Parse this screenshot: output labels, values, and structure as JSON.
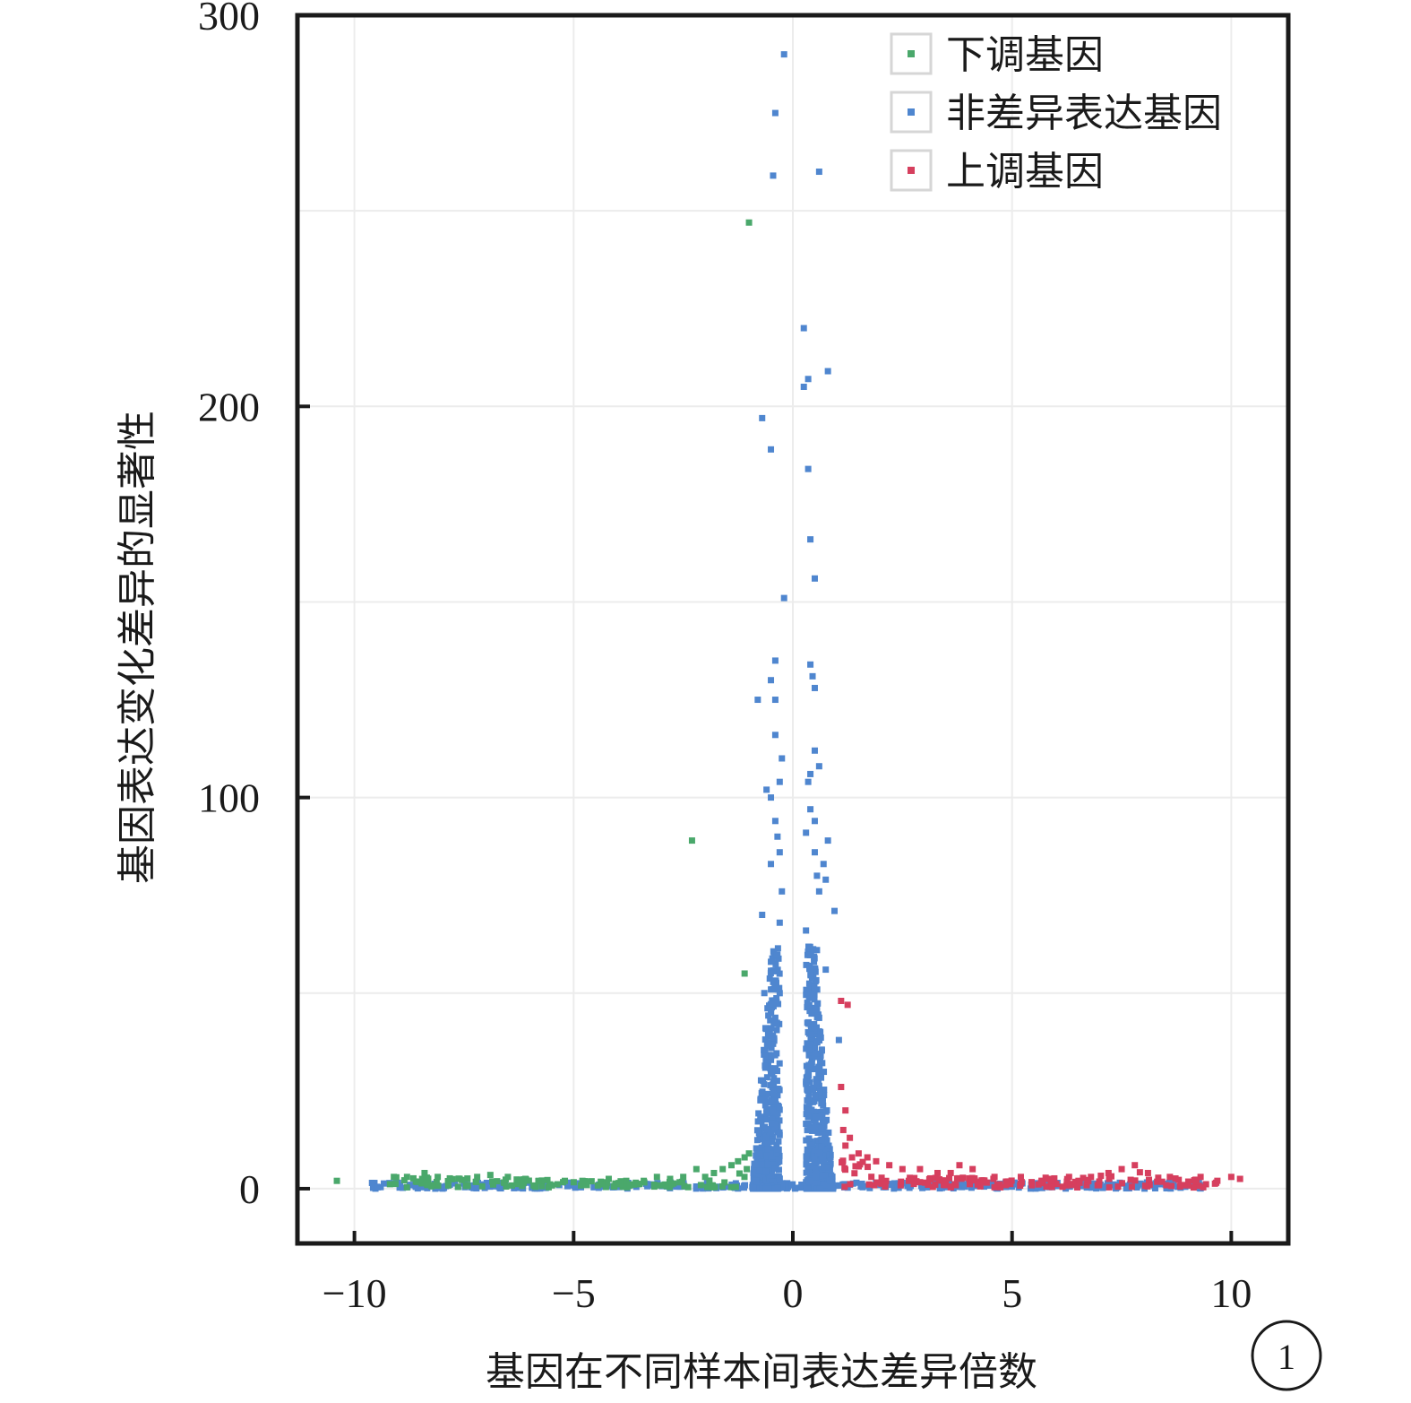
{
  "chart_data": {
    "type": "scatter",
    "title": "",
    "xlabel": "基因在不同样本间表达差异倍数",
    "ylabel": "基因表达变化差异的显著性",
    "xlim": [
      -11.3,
      11.3
    ],
    "ylim": [
      -14,
      300
    ],
    "xticks": [
      -10,
      -5,
      0,
      5,
      10
    ],
    "xtick_labels": [
      "−10",
      "−5",
      "0",
      "5",
      "10"
    ],
    "yticks": [
      0,
      100,
      200,
      300
    ],
    "ytick_labels": [
      "0",
      "100",
      "200",
      "300"
    ],
    "grid": true,
    "legend_position": "top-right",
    "panel_label": "1",
    "series": [
      {
        "name": "下调基因",
        "color": "#4aa86b",
        "points": [
          [
            -10.4,
            2
          ],
          [
            -9.1,
            3
          ],
          [
            -8.8,
            3
          ],
          [
            -8.4,
            4
          ],
          [
            -8.1,
            3
          ],
          [
            -7.6,
            2.5
          ],
          [
            -7.2,
            3
          ],
          [
            -6.9,
            3.5
          ],
          [
            -6.5,
            3
          ],
          [
            -6.1,
            2.5
          ],
          [
            -5.8,
            2
          ],
          [
            -5.2,
            2
          ],
          [
            -4.8,
            2
          ],
          [
            -4.2,
            2.5
          ],
          [
            -3.8,
            2
          ],
          [
            -3.4,
            2
          ],
          [
            -3.1,
            3
          ],
          [
            -2.8,
            2.5
          ],
          [
            -2.5,
            3
          ],
          [
            -2.2,
            5
          ],
          [
            -2.0,
            3
          ],
          [
            -1.8,
            4
          ],
          [
            -1.6,
            5
          ],
          [
            -1.4,
            6
          ],
          [
            -1.25,
            7
          ],
          [
            -1.1,
            8
          ],
          [
            -1.05,
            5
          ],
          [
            -1.0,
            9
          ],
          [
            -2.3,
            89
          ],
          [
            -1.1,
            55
          ],
          [
            -1.0,
            247
          ]
        ]
      },
      {
        "name": "非差异表达基因",
        "color": "#4f86cf",
        "points": [
          [
            -0.2,
            290
          ],
          [
            -0.4,
            275
          ],
          [
            0.6,
            260
          ],
          [
            -0.45,
            259
          ],
          [
            0.25,
            220
          ],
          [
            0.8,
            209
          ],
          [
            0.35,
            207
          ],
          [
            0.25,
            205
          ],
          [
            -0.7,
            197
          ],
          [
            -0.5,
            189
          ],
          [
            0.35,
            184
          ],
          [
            0.4,
            166
          ],
          [
            0.5,
            156
          ],
          [
            -0.2,
            151
          ],
          [
            -0.4,
            135
          ],
          [
            0.4,
            134
          ],
          [
            0.45,
            131
          ],
          [
            -0.5,
            130
          ],
          [
            0.5,
            128
          ],
          [
            -0.4,
            125
          ],
          [
            -0.8,
            125
          ],
          [
            -0.4,
            116
          ],
          [
            0.5,
            112
          ],
          [
            -0.25,
            110
          ],
          [
            0.6,
            108
          ],
          [
            0.4,
            106
          ],
          [
            0.35,
            104
          ],
          [
            -0.3,
            104
          ],
          [
            -0.6,
            102
          ],
          [
            -0.5,
            100
          ],
          [
            0.4,
            97
          ],
          [
            0.5,
            94
          ],
          [
            -0.4,
            94
          ],
          [
            0.3,
            91
          ],
          [
            -0.35,
            90
          ],
          [
            0.8,
            89
          ],
          [
            0.5,
            86
          ],
          [
            -0.3,
            86
          ],
          [
            0.7,
            83
          ],
          [
            -0.5,
            83
          ],
          [
            0.55,
            80
          ],
          [
            0.75,
            79
          ],
          [
            -0.25,
            76
          ],
          [
            0.6,
            76
          ],
          [
            0.95,
            71
          ],
          [
            -0.7,
            70
          ],
          [
            -0.3,
            68
          ],
          [
            0.3,
            66
          ],
          [
            0.55,
            61
          ],
          [
            -0.5,
            58
          ],
          [
            0.75,
            56
          ],
          [
            -0.65,
            50
          ],
          [
            1.05,
            38
          ]
        ]
      },
      {
        "name": "上调基因",
        "color": "#d63f5e",
        "points": [
          [
            1.1,
            48
          ],
          [
            1.25,
            47
          ],
          [
            1.1,
            26
          ],
          [
            1.2,
            20
          ],
          [
            1.15,
            15
          ],
          [
            1.3,
            13
          ],
          [
            1.2,
            11
          ],
          [
            1.35,
            8
          ],
          [
            1.5,
            9
          ],
          [
            1.7,
            8
          ],
          [
            1.9,
            7
          ],
          [
            2.2,
            6
          ],
          [
            2.5,
            5
          ],
          [
            2.9,
            5
          ],
          [
            3.3,
            4
          ],
          [
            3.6,
            4
          ],
          [
            3.8,
            6
          ],
          [
            4.1,
            5
          ],
          [
            4.6,
            3
          ],
          [
            5.2,
            3
          ],
          [
            5.8,
            2.5
          ],
          [
            6.3,
            3
          ],
          [
            6.8,
            3
          ],
          [
            7.2,
            4
          ],
          [
            7.5,
            5
          ],
          [
            7.8,
            6
          ],
          [
            8.1,
            4
          ],
          [
            8.6,
            3
          ],
          [
            9.3,
            3
          ],
          [
            10.0,
            3
          ],
          [
            10.2,
            2.5
          ]
        ]
      }
    ]
  }
}
